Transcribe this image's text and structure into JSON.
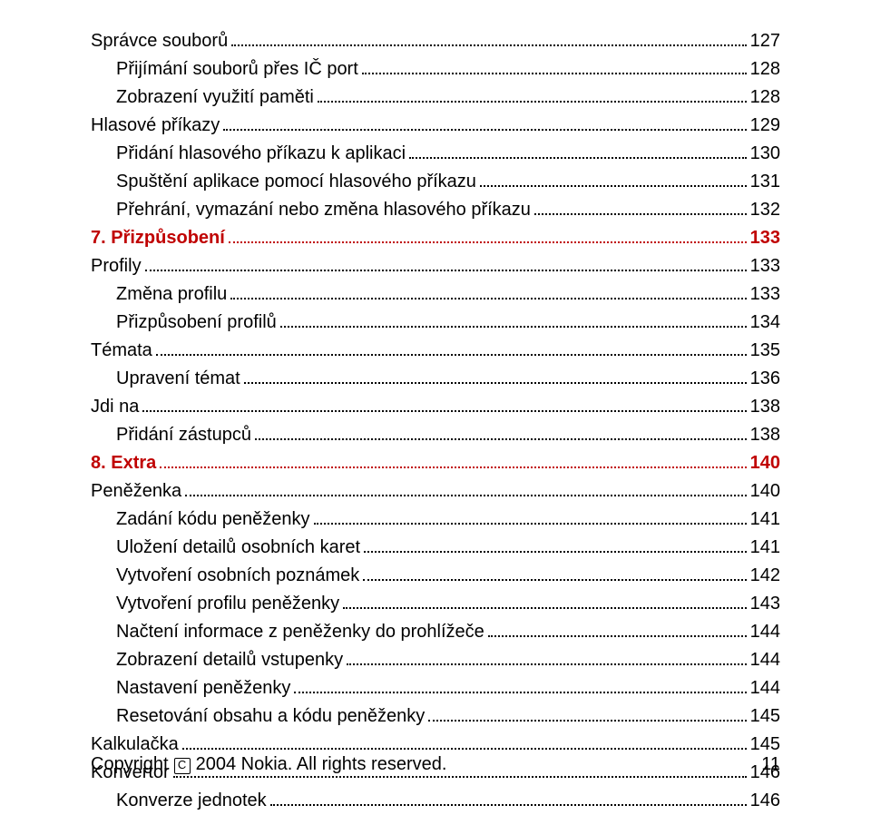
{
  "entries": [
    {
      "label": "Správce souborů",
      "page": "127",
      "indent": 0,
      "heading": false
    },
    {
      "label": "Přijímání souborů přes IČ port",
      "page": "128",
      "indent": 1,
      "heading": false
    },
    {
      "label": "Zobrazení využití paměti",
      "page": "128",
      "indent": 1,
      "heading": false
    },
    {
      "label": "Hlasové příkazy",
      "page": "129",
      "indent": 0,
      "heading": false
    },
    {
      "label": "Přidání hlasového příkazu k aplikaci",
      "page": "130",
      "indent": 1,
      "heading": false
    },
    {
      "label": "Spuštění aplikace pomocí hlasového příkazu",
      "page": "131",
      "indent": 1,
      "heading": false
    },
    {
      "label": "Přehrání, vymazání nebo změna hlasového příkazu",
      "page": "132",
      "indent": 1,
      "heading": false
    },
    {
      "label": "7. Přizpůsobení",
      "page": "133",
      "indent": 0,
      "heading": true
    },
    {
      "label": "Profily",
      "page": "133",
      "indent": 0,
      "heading": false
    },
    {
      "label": "Změna profilu",
      "page": "133",
      "indent": 1,
      "heading": false
    },
    {
      "label": "Přizpůsobení profilů",
      "page": "134",
      "indent": 1,
      "heading": false
    },
    {
      "label": "Témata",
      "page": "135",
      "indent": 0,
      "heading": false
    },
    {
      "label": "Upravení témat",
      "page": "136",
      "indent": 1,
      "heading": false
    },
    {
      "label": "Jdi na",
      "page": "138",
      "indent": 0,
      "heading": false
    },
    {
      "label": "Přidání zástupců",
      "page": "138",
      "indent": 1,
      "heading": false
    },
    {
      "label": "8. Extra",
      "page": "140",
      "indent": 0,
      "heading": true
    },
    {
      "label": "Peněženka",
      "page": "140",
      "indent": 0,
      "heading": false
    },
    {
      "label": "Zadání kódu peněženky",
      "page": "141",
      "indent": 1,
      "heading": false
    },
    {
      "label": "Uložení detailů osobních karet",
      "page": "141",
      "indent": 1,
      "heading": false
    },
    {
      "label": "Vytvoření osobních poznámek",
      "page": "142",
      "indent": 1,
      "heading": false
    },
    {
      "label": "Vytvoření profilu peněženky",
      "page": "143",
      "indent": 1,
      "heading": false
    },
    {
      "label": "Načtení informace z peněženky do prohlížeče",
      "page": "144",
      "indent": 1,
      "heading": false
    },
    {
      "label": "Zobrazení detailů vstupenky",
      "page": "144",
      "indent": 1,
      "heading": false
    },
    {
      "label": "Nastavení peněženky",
      "page": "144",
      "indent": 1,
      "heading": false
    },
    {
      "label": "Resetování obsahu a kódu peněženky",
      "page": "145",
      "indent": 1,
      "heading": false
    },
    {
      "label": "Kalkulačka",
      "page": "145",
      "indent": 0,
      "heading": false
    },
    {
      "label": "Konvertor",
      "page": "146",
      "indent": 0,
      "heading": false
    },
    {
      "label": "Konverze jednotek",
      "page": "146",
      "indent": 1,
      "heading": false
    }
  ],
  "footer": {
    "copyright_prefix": "Copyright",
    "copyright_symbol": "C",
    "copyright_text": "2004 Nokia. All rights reserved.",
    "page_number": "11"
  }
}
